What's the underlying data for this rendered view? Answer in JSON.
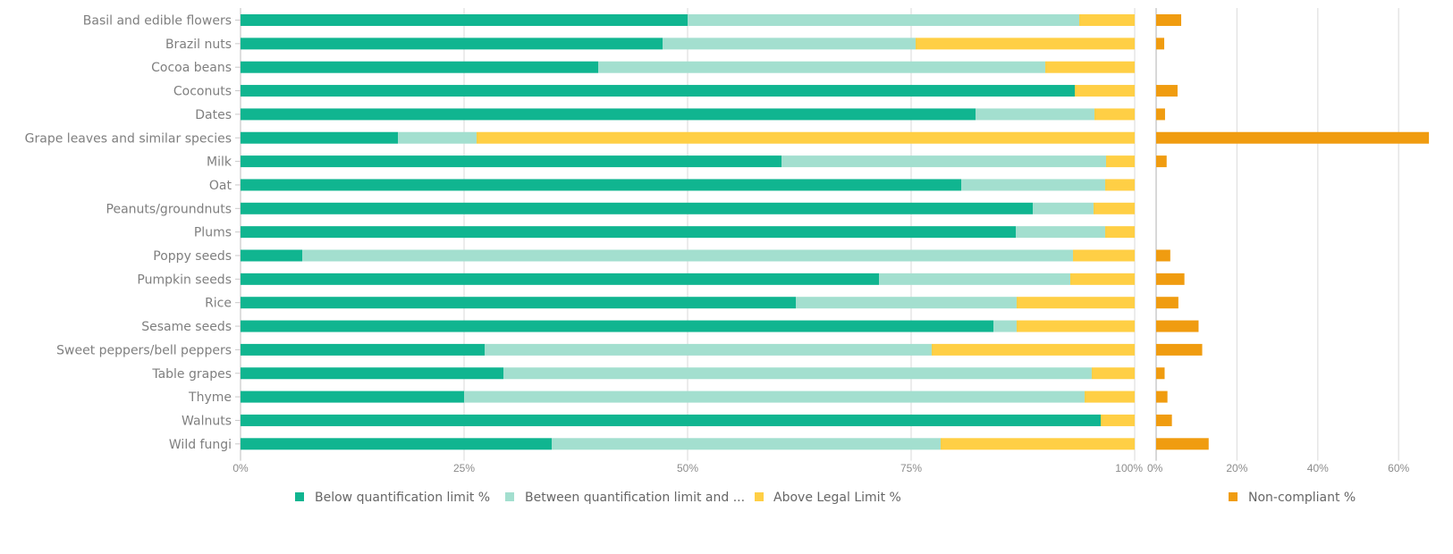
{
  "chart_data": [
    {
      "type": "bar",
      "orientation": "horizontal",
      "stacked": "100%",
      "categories": [
        "Basil and edible flowers",
        "Brazil nuts",
        "Cocoa beans",
        "Coconuts",
        "Dates",
        "Grape leaves and similar species",
        "Milk",
        "Oat",
        "Peanuts/groundnuts",
        "Plums",
        "Poppy seeds",
        "Pumpkin seeds",
        "Rice",
        "Sesame seeds",
        "Sweet peppers/bell peppers",
        "Table grapes",
        "Thyme",
        "Walnuts",
        "Wild fungi"
      ],
      "series": [
        {
          "name": "Below quantification limit %",
          "color": "#10b590",
          "values": [
            50.0,
            47.2,
            40.0,
            93.3,
            82.2,
            17.6,
            60.5,
            80.6,
            88.6,
            86.7,
            6.9,
            71.4,
            62.1,
            84.2,
            27.3,
            29.4,
            25.0,
            96.2,
            34.8
          ]
        },
        {
          "name": "Between quantification limit and ...",
          "color": "#a3dfcf",
          "values": [
            43.8,
            28.3,
            50.0,
            0.0,
            13.3,
            8.8,
            36.3,
            16.1,
            6.8,
            10.0,
            86.2,
            21.4,
            24.7,
            2.6,
            50.0,
            65.8,
            69.4,
            0.0,
            43.5
          ]
        },
        {
          "name": "Above Legal Limit %",
          "color": "#ffcf45",
          "values": [
            6.2,
            24.5,
            10.0,
            6.7,
            4.5,
            73.6,
            3.2,
            3.3,
            4.6,
            3.3,
            6.9,
            7.2,
            13.2,
            13.2,
            22.7,
            4.8,
            5.6,
            3.8,
            21.7
          ]
        }
      ],
      "xticks": [
        "0%",
        "25%",
        "50%",
        "75%",
        "100%"
      ],
      "xlim": [
        0,
        100
      ],
      "grid": true,
      "legend": "bottom"
    },
    {
      "type": "bar",
      "orientation": "horizontal",
      "categories": [
        "Basil and edible flowers",
        "Brazil nuts",
        "Cocoa beans",
        "Coconuts",
        "Dates",
        "Grape leaves and similar species",
        "Milk",
        "Oat",
        "Peanuts/groundnuts",
        "Plums",
        "Poppy seeds",
        "Pumpkin seeds",
        "Rice",
        "Sesame seeds",
        "Sweet peppers/bell peppers",
        "Table grapes",
        "Thyme",
        "Walnuts",
        "Wild fungi"
      ],
      "series": [
        {
          "name": "Non-compliant %",
          "color": "#f09c10",
          "values": [
            6.2,
            2.0,
            0,
            5.3,
            2.2,
            67.5,
            2.6,
            0,
            0,
            0,
            3.5,
            7.0,
            5.5,
            10.5,
            11.4,
            2.1,
            2.8,
            3.9,
            13.0
          ]
        }
      ],
      "xticks": [
        "0%",
        "20%",
        "40%",
        "60%"
      ],
      "xtick_values": [
        0,
        20,
        40,
        60
      ],
      "xlim": [
        0,
        67.8
      ],
      "grid": true,
      "legend": "bottom-right"
    }
  ]
}
